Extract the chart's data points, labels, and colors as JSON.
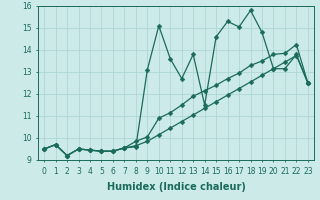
{
  "xlabel": "Humidex (Indice chaleur)",
  "xlim": [
    -0.5,
    23.5
  ],
  "ylim": [
    9,
    16
  ],
  "bg_color": "#cceae8",
  "line_color": "#1a6b5a",
  "grid_color": "#aad4d0",
  "series1_y": [
    9.5,
    9.7,
    9.2,
    9.5,
    9.45,
    9.4,
    9.4,
    9.55,
    9.6,
    13.1,
    15.1,
    13.6,
    12.7,
    13.8,
    11.5,
    14.6,
    15.3,
    15.05,
    15.8,
    14.8,
    13.15,
    13.15,
    13.8,
    12.5
  ],
  "series2_y": [
    9.5,
    9.7,
    9.2,
    9.5,
    9.45,
    9.4,
    9.4,
    9.55,
    9.85,
    10.05,
    10.9,
    11.15,
    11.5,
    11.9,
    12.15,
    12.4,
    12.7,
    12.95,
    13.3,
    13.5,
    13.8,
    13.85,
    14.25,
    12.5
  ],
  "series3_y": [
    9.5,
    9.7,
    9.2,
    9.5,
    9.45,
    9.4,
    9.4,
    9.55,
    9.65,
    9.85,
    10.15,
    10.45,
    10.75,
    11.05,
    11.35,
    11.65,
    11.95,
    12.25,
    12.55,
    12.85,
    13.15,
    13.45,
    13.75,
    12.5
  ],
  "yticks": [
    9,
    10,
    11,
    12,
    13,
    14,
    15,
    16
  ],
  "xticks": [
    0,
    1,
    2,
    3,
    4,
    5,
    6,
    7,
    8,
    9,
    10,
    11,
    12,
    13,
    14,
    15,
    16,
    17,
    18,
    19,
    20,
    21,
    22,
    23
  ],
  "markersize": 2.5,
  "linewidth": 0.9,
  "fontsize_ticks": 5.5,
  "fontsize_xlabel": 7
}
